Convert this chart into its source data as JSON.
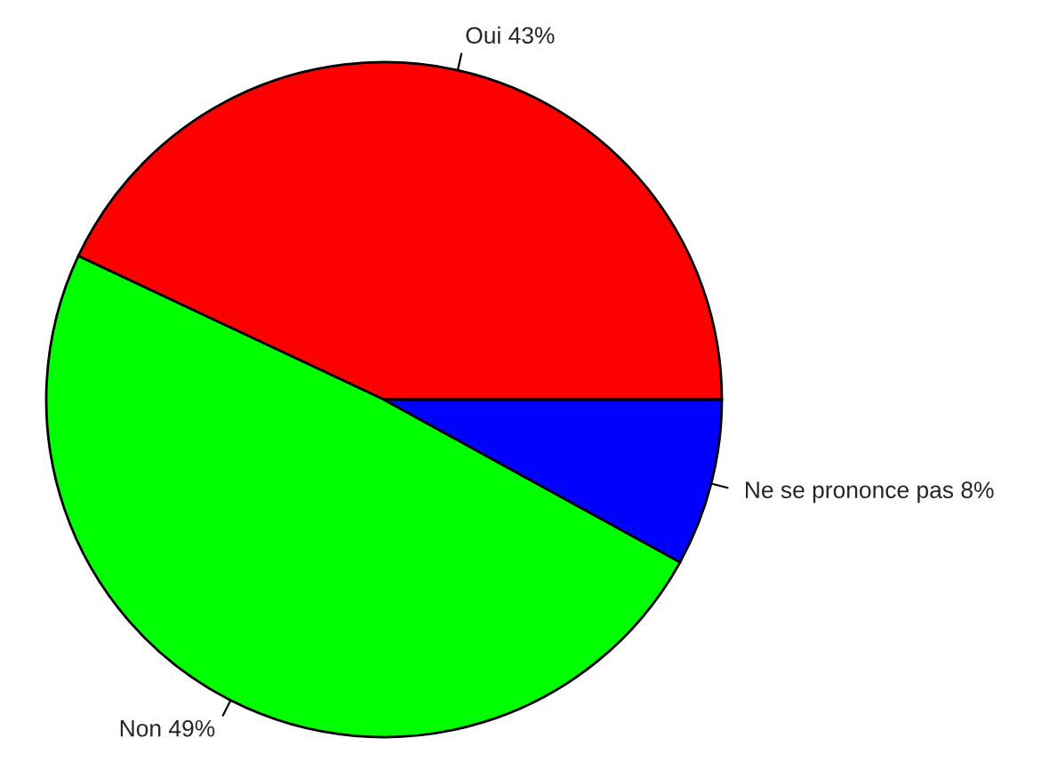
{
  "chart_data": {
    "type": "pie",
    "categories": [
      "Oui 43%",
      "Non 49%",
      "Ne se prononce pas 8%"
    ],
    "values": [
      43,
      49,
      8
    ],
    "colors": [
      "#ff0000",
      "#00ff00",
      "#0000ff"
    ]
  }
}
